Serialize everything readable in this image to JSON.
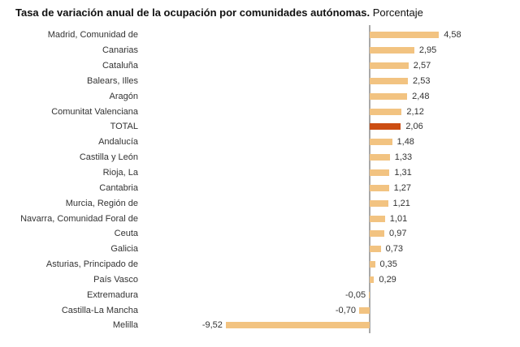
{
  "title": {
    "main": "Tasa de variación anual de la ocupación por comunidades autónomas.",
    "suffix": " Porcentaje"
  },
  "colors": {
    "bar": "#F2C381",
    "highlight_bar": "#CC4D12",
    "axis": "#A9A9A9",
    "title_text": "#111111",
    "label_text": "#333333"
  },
  "chart_data": {
    "type": "bar",
    "orientation": "horizontal",
    "title": "Tasa de variación anual de la ocupación por comunidades autónomas. Porcentaje",
    "xlabel": "",
    "ylabel": "",
    "grid": false,
    "legend": false,
    "value_labels_shown": true,
    "decimal_separator": ",",
    "xlim": [
      -9.52,
      4.58
    ],
    "highlight_category": "TOTAL",
    "highlight_index": 6,
    "categories": [
      "Madrid, Comunidad de",
      "Canarias",
      "Cataluña",
      "Balears, Illes",
      "Aragón",
      "Comunitat Valenciana",
      "TOTAL",
      "Andalucía",
      "Castilla y León",
      "Rioja, La",
      "Cantabria",
      "Murcia, Región de",
      "Navarra, Comunidad Foral de",
      "Ceuta",
      "Galicia",
      "Asturias, Principado de",
      "País Vasco",
      "Extremadura",
      "Castilla-La Mancha",
      "Melilla"
    ],
    "values": [
      4.58,
      2.95,
      2.57,
      2.53,
      2.48,
      2.12,
      2.06,
      1.48,
      1.33,
      1.31,
      1.27,
      1.21,
      1.01,
      0.97,
      0.73,
      0.35,
      0.29,
      -0.05,
      -0.7,
      -9.52
    ],
    "value_labels": [
      "4,58",
      "2,95",
      "2,57",
      "2,53",
      "2,48",
      "2,12",
      "2,06",
      "1,48",
      "1,33",
      "1,31",
      "1,27",
      "1,21",
      "1,01",
      "0,97",
      "0,73",
      "0,35",
      "0,29",
      "-0,05",
      "-0,70",
      "-9,52"
    ]
  }
}
